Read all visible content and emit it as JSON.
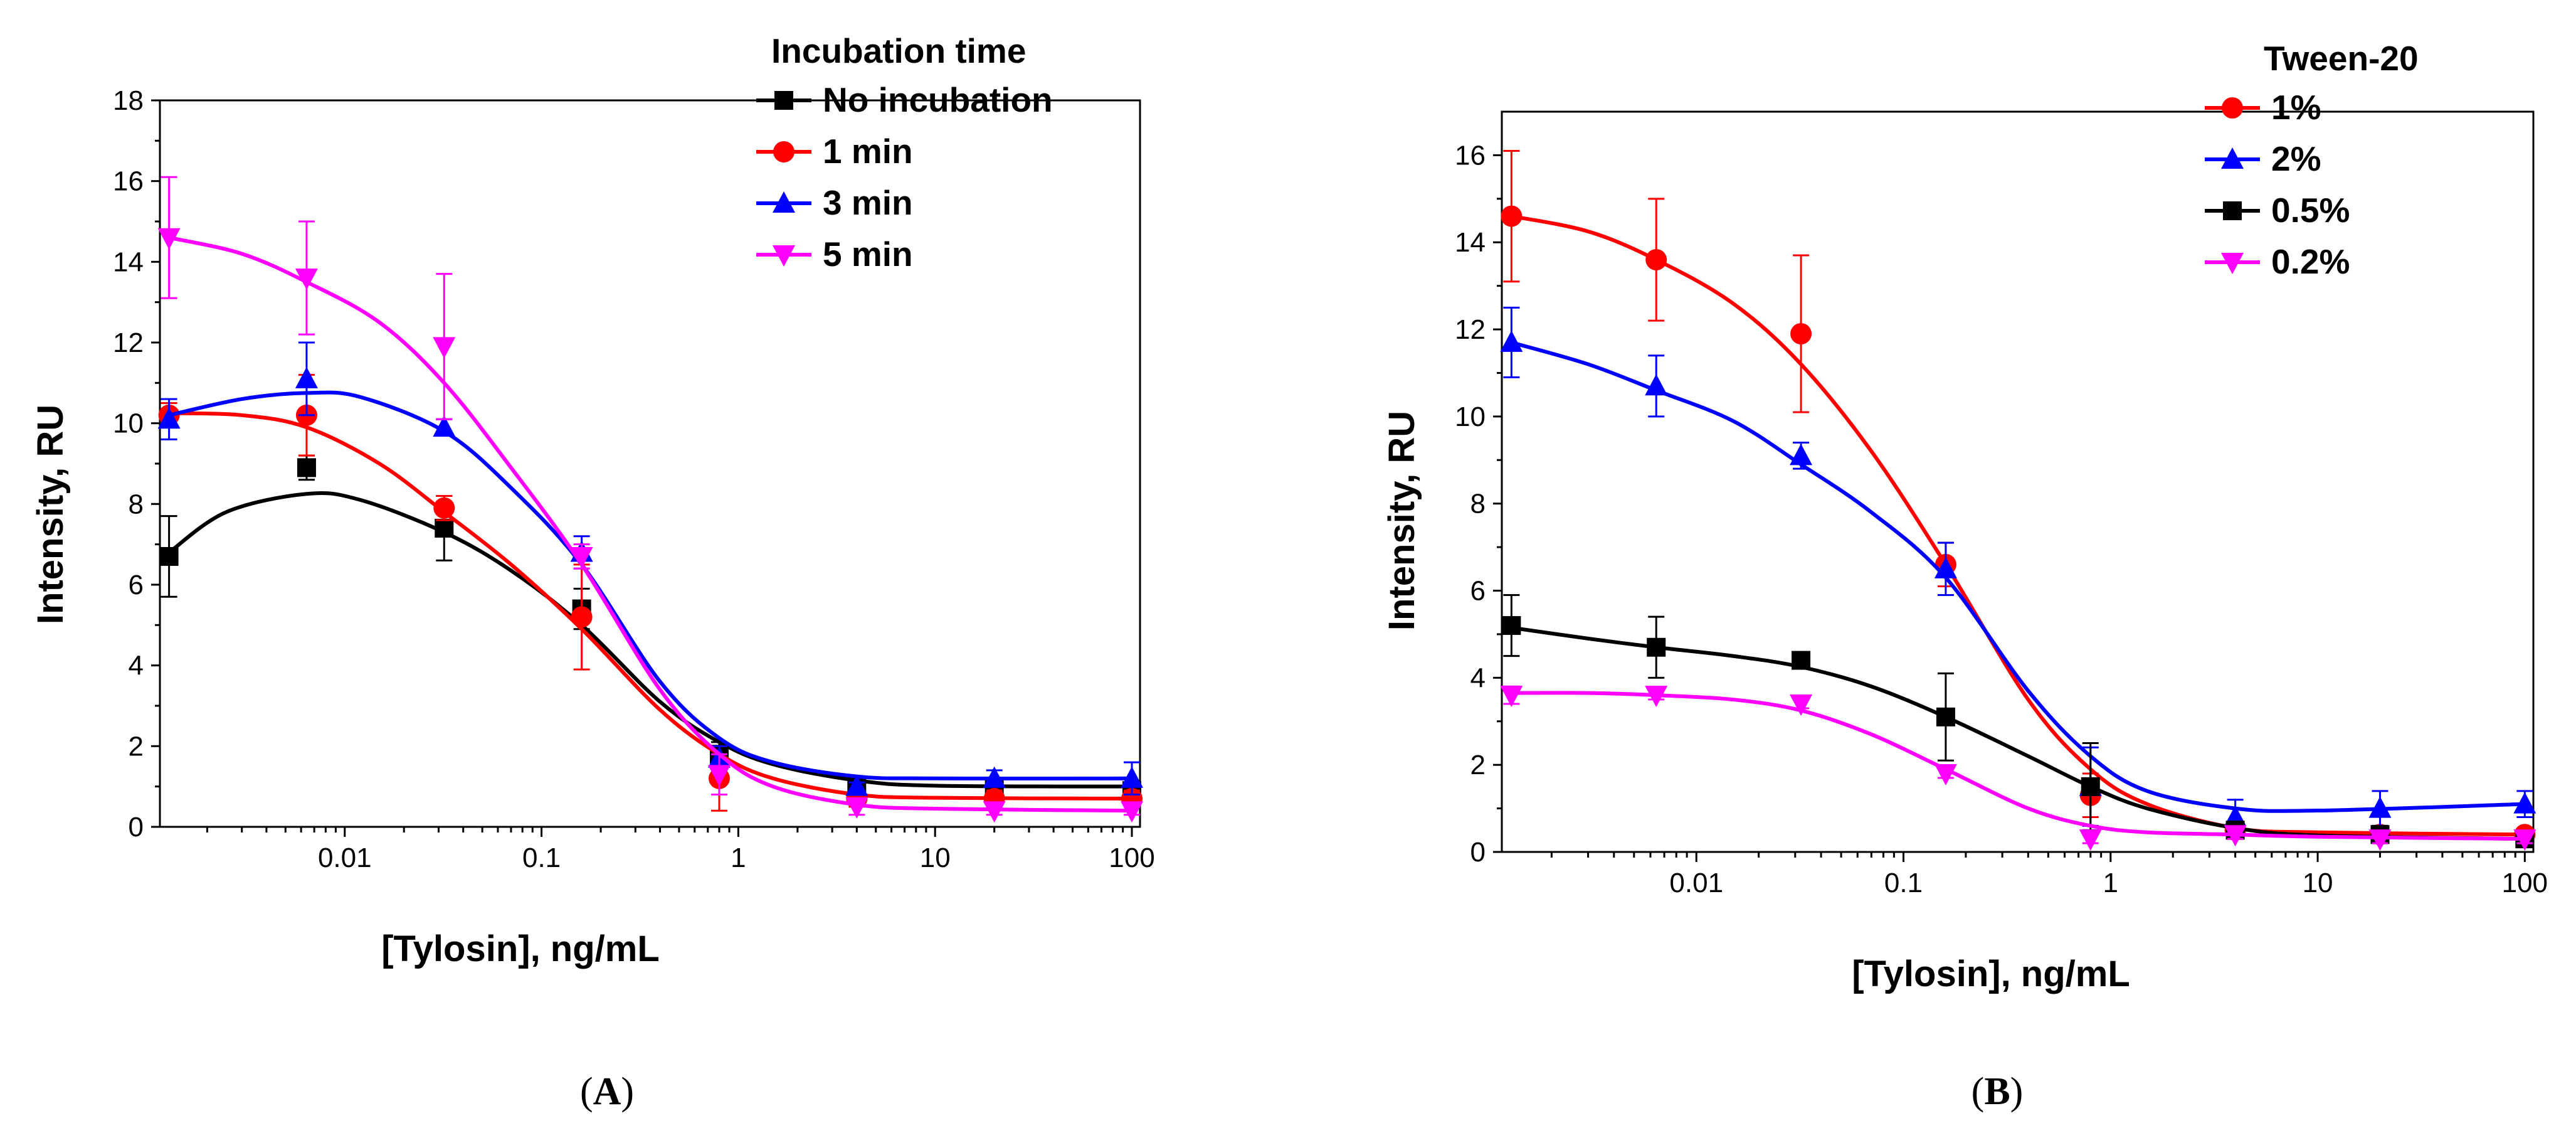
{
  "chart_data": [
    {
      "id": "A",
      "type": "line",
      "panel_label": "A",
      "title": "",
      "xlabel": "[Tylosin], ng/mL",
      "ylabel": "Intensity, RU",
      "xscale": "log",
      "xlim": [
        0.00115,
        110
      ],
      "ylim": [
        0,
        18
      ],
      "xticks": [
        0.01,
        0.1,
        1,
        10,
        100
      ],
      "xtick_labels": [
        "0.01",
        "0.1",
        "1",
        "10",
        "100"
      ],
      "yticks": [
        0,
        2,
        4,
        6,
        8,
        10,
        12,
        14,
        16,
        18
      ],
      "ytick_labels": [
        "0",
        "2",
        "4",
        "6",
        "8",
        "10",
        "12",
        "14",
        "16",
        "18"
      ],
      "legend_title": "Incubation time",
      "legend_position": "top-right",
      "x": [
        0.00128,
        0.0064,
        0.032,
        0.16,
        0.8,
        4,
        20,
        100
      ],
      "series": [
        {
          "name": "No incubation",
          "color": "#000000",
          "marker": "square",
          "values": [
            6.7,
            8.9,
            7.4,
            5.4,
            1.8,
            1.0,
            1.0,
            0.9
          ],
          "errors": [
            1.0,
            0.3,
            0.8,
            0.5,
            0.3,
            0.1,
            0.1,
            0.1
          ],
          "fit": [
            [
              0.00128,
              6.8
            ],
            [
              0.0025,
              7.8
            ],
            [
              0.0064,
              8.25
            ],
            [
              0.012,
              8.1
            ],
            [
              0.032,
              7.3
            ],
            [
              0.07,
              6.35
            ],
            [
              0.16,
              5.0
            ],
            [
              0.4,
              3.1
            ],
            [
              0.8,
              2.1
            ],
            [
              1.5,
              1.55
            ],
            [
              4,
              1.15
            ],
            [
              10,
              1.02
            ],
            [
              100,
              1.0
            ]
          ]
        },
        {
          "name": "1 min",
          "color": "#ff0000",
          "marker": "circle",
          "values": [
            10.2,
            10.2,
            7.9,
            5.2,
            1.2,
            0.7,
            0.7,
            0.7
          ],
          "errors": [
            0.3,
            1.0,
            0.3,
            1.3,
            0.8,
            0.2,
            0.2,
            0.2
          ],
          "fit": [
            [
              0.00128,
              10.25
            ],
            [
              0.003,
              10.2
            ],
            [
              0.0064,
              9.9
            ],
            [
              0.015,
              9.0
            ],
            [
              0.032,
              7.8
            ],
            [
              0.07,
              6.5
            ],
            [
              0.16,
              4.9
            ],
            [
              0.4,
              2.9
            ],
            [
              0.8,
              1.8
            ],
            [
              1.5,
              1.2
            ],
            [
              4,
              0.8
            ],
            [
              10,
              0.72
            ],
            [
              100,
              0.7
            ]
          ]
        },
        {
          "name": "3 min",
          "color": "#0000ff",
          "marker": "triangle-up",
          "values": [
            10.1,
            11.1,
            9.9,
            6.8,
            1.7,
            1.0,
            1.2,
            1.2
          ],
          "errors": [
            0.5,
            0.9,
            0.2,
            0.4,
            0.3,
            0.1,
            0.2,
            0.4
          ],
          "fit": [
            [
              0.00128,
              10.2
            ],
            [
              0.003,
              10.6
            ],
            [
              0.0064,
              10.75
            ],
            [
              0.012,
              10.65
            ],
            [
              0.032,
              9.8
            ],
            [
              0.07,
              8.4
            ],
            [
              0.16,
              6.5
            ],
            [
              0.4,
              3.6
            ],
            [
              0.8,
              2.2
            ],
            [
              1.5,
              1.6
            ],
            [
              4,
              1.25
            ],
            [
              10,
              1.2
            ],
            [
              100,
              1.2
            ]
          ]
        },
        {
          "name": "5 min",
          "color": "#ff00ff",
          "marker": "triangle-down",
          "values": [
            14.6,
            13.6,
            11.9,
            6.7,
            1.3,
            0.5,
            0.4,
            0.4
          ],
          "errors": [
            1.5,
            1.4,
            1.8,
            0.3,
            0.5,
            0.2,
            0.1,
            0.1
          ],
          "fit": [
            [
              0.00128,
              14.6
            ],
            [
              0.003,
              14.2
            ],
            [
              0.0064,
              13.5
            ],
            [
              0.015,
              12.5
            ],
            [
              0.032,
              11.0
            ],
            [
              0.07,
              8.9
            ],
            [
              0.16,
              6.5
            ],
            [
              0.4,
              3.4
            ],
            [
              0.8,
              1.8
            ],
            [
              1.5,
              1.0
            ],
            [
              4,
              0.55
            ],
            [
              10,
              0.45
            ],
            [
              100,
              0.4
            ]
          ]
        }
      ]
    },
    {
      "id": "B",
      "type": "line",
      "panel_label": "B",
      "title": "",
      "xlabel": "[Tylosin], ng/mL",
      "ylabel": "Intensity, RU",
      "xscale": "log",
      "xlim": [
        0.00115,
        110
      ],
      "ylim": [
        0,
        17
      ],
      "xticks": [
        0.01,
        0.1,
        1,
        10,
        100
      ],
      "xtick_labels": [
        "0.01",
        "0.1",
        "1",
        "10",
        "100"
      ],
      "yticks": [
        0,
        2,
        4,
        6,
        8,
        10,
        12,
        14,
        16
      ],
      "ytick_labels": [
        "0",
        "2",
        "4",
        "6",
        "8",
        "10",
        "12",
        "14",
        "16"
      ],
      "legend_title": "Tween-20",
      "legend_position": "top-right",
      "x": [
        0.00128,
        0.0064,
        0.032,
        0.16,
        0.8,
        4,
        20,
        100
      ],
      "series": [
        {
          "name": "1%",
          "color": "#ff0000",
          "marker": "circle",
          "values": [
            14.6,
            13.6,
            11.9,
            6.6,
            1.3,
            0.5,
            0.4,
            0.4
          ],
          "errors": [
            1.5,
            1.4,
            1.8,
            0.5,
            0.5,
            0.2,
            0.1,
            0.1
          ],
          "fit": [
            [
              0.00128,
              14.6
            ],
            [
              0.003,
              14.25
            ],
            [
              0.0064,
              13.6
            ],
            [
              0.015,
              12.6
            ],
            [
              0.032,
              11.2
            ],
            [
              0.07,
              9.2
            ],
            [
              0.16,
              6.6
            ],
            [
              0.4,
              3.5
            ],
            [
              0.8,
              1.9
            ],
            [
              1.5,
              1.1
            ],
            [
              4,
              0.55
            ],
            [
              10,
              0.45
            ],
            [
              100,
              0.4
            ]
          ]
        },
        {
          "name": "2%",
          "color": "#0000ff",
          "marker": "triangle-up",
          "values": [
            11.7,
            10.7,
            9.1,
            6.5,
            1.5,
            0.8,
            1.0,
            1.1
          ],
          "errors": [
            0.8,
            0.7,
            0.3,
            0.6,
            0.9,
            0.4,
            0.4,
            0.3
          ],
          "fit": [
            [
              0.00128,
              11.7
            ],
            [
              0.003,
              11.2
            ],
            [
              0.0064,
              10.6
            ],
            [
              0.015,
              9.9
            ],
            [
              0.032,
              8.9
            ],
            [
              0.07,
              7.8
            ],
            [
              0.16,
              6.3
            ],
            [
              0.4,
              3.7
            ],
            [
              0.8,
              2.2
            ],
            [
              1.5,
              1.4
            ],
            [
              4,
              1.0
            ],
            [
              10,
              0.95
            ],
            [
              100,
              1.1
            ]
          ]
        },
        {
          "name": "0.5%",
          "color": "#000000",
          "marker": "square",
          "values": [
            5.2,
            4.7,
            4.4,
            3.1,
            1.5,
            0.5,
            0.4,
            0.3
          ],
          "errors": [
            0.7,
            0.7,
            0.1,
            1.0,
            1.0,
            0.2,
            0.2,
            0.1
          ],
          "fit": [
            [
              0.00128,
              5.15
            ],
            [
              0.003,
              4.9
            ],
            [
              0.0064,
              4.7
            ],
            [
              0.015,
              4.5
            ],
            [
              0.032,
              4.25
            ],
            [
              0.07,
              3.8
            ],
            [
              0.16,
              3.1
            ],
            [
              0.4,
              2.2
            ],
            [
              0.8,
              1.5
            ],
            [
              1.5,
              1.0
            ],
            [
              4,
              0.55
            ],
            [
              10,
              0.38
            ],
            [
              100,
              0.3
            ]
          ]
        },
        {
          "name": "0.2%",
          "color": "#ff00ff",
          "marker": "triangle-down",
          "values": [
            3.6,
            3.6,
            3.4,
            1.8,
            0.3,
            0.4,
            0.3,
            0.3
          ],
          "errors": [
            0.2,
            0.1,
            0.1,
            0.1,
            0.1,
            0.1,
            0.1,
            0.1
          ],
          "fit": [
            [
              0.00128,
              3.65
            ],
            [
              0.003,
              3.65
            ],
            [
              0.0064,
              3.6
            ],
            [
              0.015,
              3.5
            ],
            [
              0.032,
              3.25
            ],
            [
              0.07,
              2.7
            ],
            [
              0.16,
              1.9
            ],
            [
              0.4,
              1.0
            ],
            [
              0.8,
              0.6
            ],
            [
              1.5,
              0.45
            ],
            [
              4,
              0.4
            ],
            [
              10,
              0.35
            ],
            [
              100,
              0.3
            ]
          ]
        }
      ]
    }
  ]
}
